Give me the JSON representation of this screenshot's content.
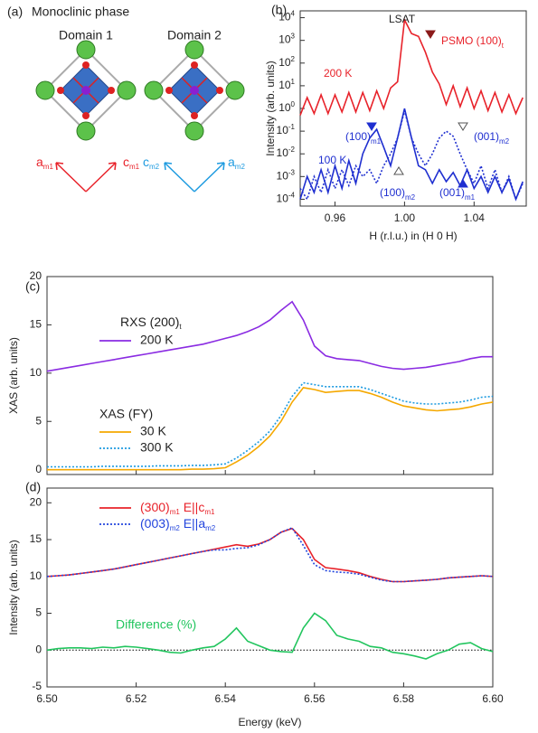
{
  "panel_a": {
    "label": "(a)",
    "title": "Monoclinic phase",
    "domains": [
      {
        "name": "Domain 1",
        "axes": [
          [
            "a",
            "m1"
          ],
          [
            "c",
            "m1"
          ]
        ]
      },
      {
        "name": "Domain 2",
        "axes": [
          [
            "c",
            "m2"
          ],
          [
            "a",
            "m2"
          ]
        ]
      }
    ]
  },
  "chart_data": [
    {
      "type": "line",
      "label": "(b)",
      "ylabel": "Intensity (arb. units)",
      "xlabel": "H (r.l.u.) in (H 0 H)",
      "log_y": true,
      "xlim": [
        0.94,
        1.07
      ],
      "xticks": [
        0.96,
        {
          "value": 1.0,
          "label": "1.00"
        },
        1.04
      ],
      "ylim": [
        5e-05,
        20000
      ],
      "yticks": [
        {
          "value": 0.0001,
          "label": [
            "10",
            "-4"
          ]
        },
        {
          "value": 0.001,
          "label": [
            "10",
            "-3"
          ]
        },
        {
          "value": 0.01,
          "label": [
            "10",
            "-2"
          ]
        },
        {
          "value": 0.1,
          "label": [
            "10",
            "-1"
          ]
        },
        {
          "value": 1,
          "label": [
            "10",
            "0"
          ]
        },
        {
          "value": 10,
          "label": [
            "10",
            "1"
          ]
        },
        {
          "value": 100,
          "label": [
            "10",
            "2"
          ]
        },
        {
          "value": 1000,
          "label": [
            "10",
            "3"
          ]
        },
        {
          "value": 10000,
          "label": [
            "10",
            "4"
          ]
        }
      ],
      "x": [
        0.94,
        0.944,
        0.948,
        0.952,
        0.956,
        0.96,
        0.964,
        0.968,
        0.972,
        0.976,
        0.98,
        0.984,
        0.988,
        0.992,
        0.996,
        1.0,
        1.004,
        1.008,
        1.012,
        1.016,
        1.02,
        1.024,
        1.028,
        1.032,
        1.036,
        1.04,
        1.044,
        1.048,
        1.052,
        1.056,
        1.06,
        1.064,
        1.068
      ],
      "series": [
        {
          "name": "200 K",
          "color": "#e8222a",
          "values": [
            0.5,
            3,
            0.6,
            4,
            0.6,
            4,
            0.7,
            5,
            0.7,
            5,
            0.8,
            6,
            1,
            8,
            15,
            8000,
            2000,
            1500,
            300,
            40,
            12,
            1.5,
            10,
            1.2,
            8,
            1,
            6,
            0.8,
            5,
            0.7,
            4,
            0.6,
            3
          ]
        },
        {
          "name": "100 K",
          "color": "#1f2fd0",
          "values": [
            0.0001,
            0.001,
            0.0002,
            0.002,
            0.0002,
            0.003,
            0.0003,
            0.005,
            0.0005,
            0.01,
            0.05,
            0.12,
            0.02,
            0.003,
            0.05,
            1,
            0.05,
            0.003,
            0.002,
            0.0005,
            0.002,
            0.0006,
            0.0015,
            0.0004,
            0.002,
            0.0003,
            0.001,
            0.0002,
            0.001,
            0.0002,
            0.0008,
            0.0001,
            0.0006
          ]
        },
        {
          "color": "#1f2fd0",
          "dotted": true,
          "values": [
            0.0003,
            0.0001,
            0.001,
            0.0002,
            0.002,
            0.0003,
            0.002,
            0.0004,
            0.003,
            0.001,
            0.002,
            0.0005,
            0.003,
            0.01,
            0.05,
            0.8,
            0.05,
            0.01,
            0.003,
            0.01,
            0.05,
            0.1,
            0.06,
            0.01,
            0.002,
            0.0005,
            0.003,
            0.0003,
            0.002,
            0.0002,
            0.001,
            0.0001,
            0.0005
          ]
        }
      ],
      "annotations": [
        {
          "text": "LSAT",
          "color": "#222222"
        },
        {
          "text": [
            "PSMO (100)",
            "t"
          ],
          "color": "#e8222a"
        },
        {
          "text": [
            "(100)",
            "m1"
          ],
          "color": "#1f2fd0"
        },
        {
          "text": [
            "(001)",
            "m2"
          ],
          "color": "#1f2fd0"
        },
        {
          "text": [
            "(100)",
            "m2"
          ],
          "color": "#1f2fd0"
        },
        {
          "text": [
            "(001)",
            "m1"
          ],
          "color": "#1f2fd0"
        }
      ]
    },
    {
      "type": "line",
      "label": "(c)",
      "ylabel": "XAS (arb. units)",
      "xlim": [
        6.5,
        6.6
      ],
      "xticks": [
        {
          "value": 6.5,
          "label": "6.50"
        },
        6.52,
        6.54,
        6.56,
        6.58,
        {
          "value": 6.6,
          "label": "6.60"
        }
      ],
      "tick_labels": false,
      "ylim": [
        -0.5,
        20
      ],
      "yticks": [
        0,
        5,
        10,
        15,
        20
      ],
      "legend_titles": [
        [
          "RXS (200)",
          "t"
        ],
        "XAS (FY)"
      ],
      "x": [
        6.5,
        6.5025,
        6.505,
        6.5075,
        6.51,
        6.5125,
        6.515,
        6.5175,
        6.52,
        6.5225,
        6.525,
        6.5275,
        6.53,
        6.5325,
        6.535,
        6.5375,
        6.54,
        6.5425,
        6.545,
        6.5475,
        6.55,
        6.5525,
        6.555,
        6.5575,
        6.56,
        6.5625,
        6.565,
        6.5675,
        6.57,
        6.5725,
        6.575,
        6.5775,
        6.58,
        6.5825,
        6.585,
        6.5875,
        6.59,
        6.5925,
        6.595,
        6.5975,
        6.6
      ],
      "series": [
        {
          "name": "200 K",
          "color": "#8a2be2",
          "values": [
            10.2,
            10.4,
            10.6,
            10.8,
            11.0,
            11.2,
            11.4,
            11.6,
            11.8,
            12.0,
            12.2,
            12.4,
            12.6,
            12.8,
            13.0,
            13.3,
            13.6,
            13.9,
            14.3,
            14.8,
            15.5,
            16.5,
            17.4,
            15.5,
            12.8,
            11.8,
            11.5,
            11.4,
            11.3,
            11.0,
            10.7,
            10.5,
            10.4,
            10.5,
            10.6,
            10.8,
            11.0,
            11.2,
            11.5,
            11.7,
            11.7
          ]
        },
        {
          "name": "30 K",
          "color": "#f5a800",
          "values": [
            0,
            0,
            0,
            0,
            0,
            0,
            0,
            0,
            0,
            0,
            0,
            0,
            0,
            0.05,
            0.05,
            0.1,
            0.2,
            0.8,
            1.5,
            2.4,
            3.5,
            5.0,
            7.0,
            8.5,
            8.3,
            8.0,
            8.1,
            8.2,
            8.2,
            7.9,
            7.5,
            7.0,
            6.6,
            6.4,
            6.2,
            6.1,
            6.2,
            6.3,
            6.5,
            6.8,
            7.0
          ]
        },
        {
          "name": "300 K",
          "color": "#1e9be0",
          "dotted": true,
          "values": [
            0.3,
            0.3,
            0.3,
            0.3,
            0.3,
            0.35,
            0.35,
            0.35,
            0.35,
            0.35,
            0.4,
            0.4,
            0.4,
            0.45,
            0.45,
            0.5,
            0.6,
            1.2,
            2.0,
            2.9,
            4.0,
            5.6,
            7.6,
            9.0,
            8.8,
            8.6,
            8.6,
            8.6,
            8.6,
            8.3,
            7.9,
            7.5,
            7.1,
            6.9,
            6.8,
            6.8,
            6.9,
            7.0,
            7.2,
            7.5,
            7.6
          ]
        }
      ]
    },
    {
      "type": "line",
      "label": "(d)",
      "ylabel": "Intensity (arb. units)",
      "xlabel": "Energy (keV)",
      "xlim": [
        6.5,
        6.6
      ],
      "xticks": [
        {
          "value": 6.5,
          "label": "6.50"
        },
        6.52,
        6.54,
        6.56,
        6.58,
        {
          "value": 6.6,
          "label": "6.60"
        }
      ],
      "ylim": [
        -5,
        22
      ],
      "yticks": [
        -5,
        0,
        5,
        10,
        15,
        20
      ],
      "hline": 0,
      "x": [
        6.5,
        6.5025,
        6.505,
        6.5075,
        6.51,
        6.5125,
        6.515,
        6.5175,
        6.52,
        6.5225,
        6.525,
        6.5275,
        6.53,
        6.5325,
        6.535,
        6.5375,
        6.54,
        6.5425,
        6.545,
        6.5475,
        6.55,
        6.5525,
        6.555,
        6.5575,
        6.56,
        6.5625,
        6.565,
        6.5675,
        6.57,
        6.5725,
        6.575,
        6.5775,
        6.58,
        6.5825,
        6.585,
        6.5875,
        6.59,
        6.5925,
        6.595,
        6.5975,
        6.6
      ],
      "series": [
        {
          "name": [
            "(300)",
            "m1",
            "   E||c",
            "m1"
          ],
          "color": "#e8222a",
          "values": [
            10.0,
            10.1,
            10.2,
            10.4,
            10.6,
            10.8,
            11.0,
            11.3,
            11.6,
            11.9,
            12.2,
            12.5,
            12.8,
            13.1,
            13.4,
            13.7,
            14.0,
            14.3,
            14.1,
            14.4,
            15.0,
            16.0,
            16.5,
            15.0,
            12.3,
            11.2,
            11.0,
            10.8,
            10.5,
            10.0,
            9.6,
            9.3,
            9.3,
            9.4,
            9.5,
            9.6,
            9.8,
            9.9,
            10.0,
            10.1,
            10.0
          ]
        },
        {
          "name": [
            "(003)",
            "m2",
            "   E||a",
            "m2"
          ],
          "color": "#2244dd",
          "dotted": true,
          "values": [
            10.0,
            10.1,
            10.2,
            10.4,
            10.6,
            10.8,
            11.0,
            11.3,
            11.6,
            11.9,
            12.2,
            12.5,
            12.8,
            13.1,
            13.4,
            13.6,
            13.6,
            13.8,
            13.9,
            14.3,
            15.0,
            16.0,
            16.6,
            14.2,
            11.6,
            10.8,
            10.6,
            10.5,
            10.3,
            9.9,
            9.5,
            9.3,
            9.3,
            9.4,
            9.5,
            9.6,
            9.8,
            9.9,
            10.0,
            10.1,
            10.0
          ]
        },
        {
          "name": "Difference (%)",
          "color": "#22c55e",
          "values": [
            0,
            0.2,
            0.3,
            0.3,
            0.2,
            0.4,
            0.3,
            0.5,
            0.4,
            0.2,
            0,
            -0.3,
            -0.4,
            0,
            0.3,
            0.5,
            1.5,
            3.0,
            1.2,
            0.6,
            0,
            -0.2,
            -0.3,
            3.0,
            5.0,
            4.0,
            2.0,
            1.5,
            1.2,
            0.5,
            0.3,
            -0.3,
            -0.5,
            -0.8,
            -1.2,
            -0.5,
            0,
            0.8,
            1.0,
            0.2,
            -0.2
          ]
        }
      ]
    }
  ]
}
